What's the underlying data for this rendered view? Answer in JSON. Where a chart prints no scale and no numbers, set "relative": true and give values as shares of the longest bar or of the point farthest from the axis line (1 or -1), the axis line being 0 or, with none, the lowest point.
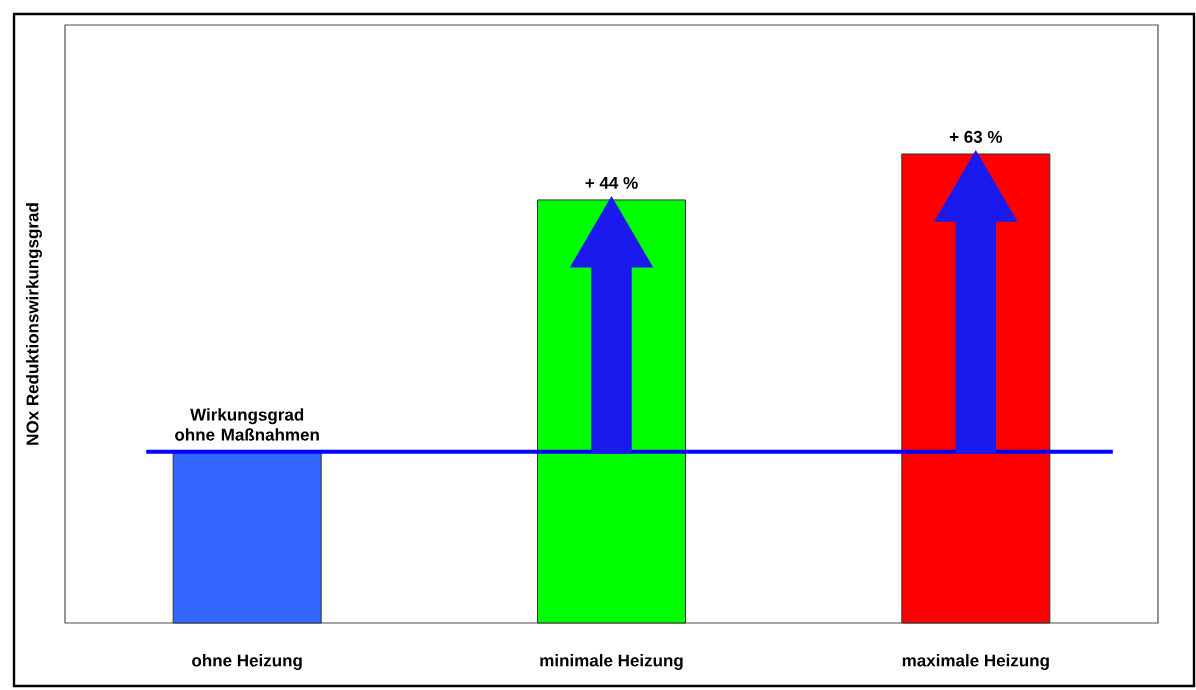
{
  "chart_data": {
    "type": "bar",
    "relative": true,
    "ylabel": "NOx Reduktionswirkungsgrad",
    "categories": [
      "ohne Heizung",
      "minimale Heizung",
      "maximale Heizung"
    ],
    "values": [
      0.365,
      0.902,
      1
    ],
    "colors": [
      "#3366ff",
      "#00ff00",
      "#ff0000"
    ],
    "annotations": [
      {
        "text": "+ 44 %",
        "x": "minimale Heizung",
        "y": 0.902
      },
      {
        "text": "+ 63 %",
        "x": "maximale Heizung",
        "y": 1
      }
    ],
    "ref_lines": [
      {
        "axis": "y",
        "value": 0.365,
        "label": "Wirkungsgrad ohne Maßnahmen",
        "color": "#0000ff"
      }
    ]
  }
}
